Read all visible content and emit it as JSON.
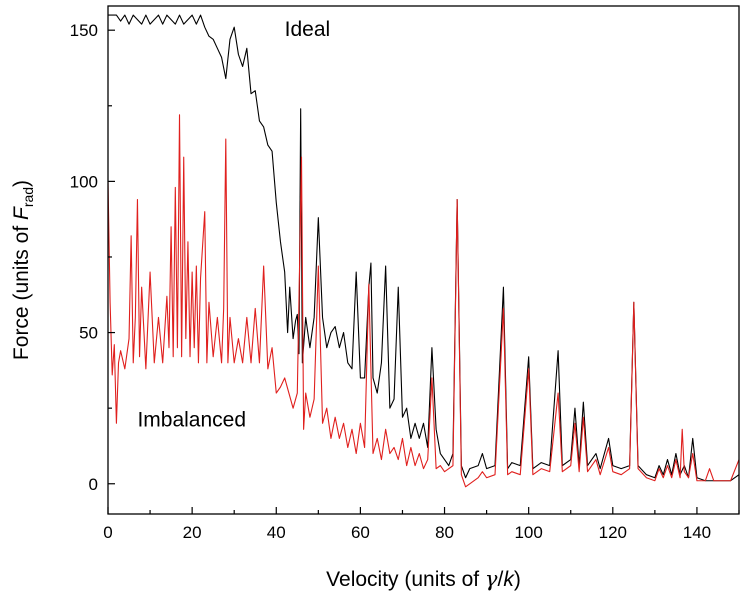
{
  "chart_data": {
    "type": "line",
    "title": "",
    "xlabel": "Velocity (units of γ/k)",
    "xlabel_parts": {
      "prefix": "Velocity (units of ",
      "gamma": "γ",
      "slash": "/",
      "k": "k",
      "suffix": ")"
    },
    "ylabel": "Force (units of F_rad)",
    "ylabel_parts": {
      "prefix": "Force (units of ",
      "F": "F",
      "sub": "rad",
      "suffix": ")"
    },
    "xlim": [
      0,
      150
    ],
    "ylim": [
      -10,
      158
    ],
    "xticks": [
      0,
      20,
      40,
      60,
      80,
      100,
      120,
      140
    ],
    "yticks": [
      0,
      50,
      100,
      150
    ],
    "grid": false,
    "annotations": [
      {
        "text": "Ideal",
        "x": 42,
        "y": 148
      },
      {
        "text": "Imbalanced",
        "x": 7,
        "y": 19
      }
    ],
    "series": [
      {
        "name": "Ideal",
        "color": "#000000",
        "points": [
          [
            0,
            155
          ],
          [
            2,
            155
          ],
          [
            3,
            153
          ],
          [
            4,
            155
          ],
          [
            5,
            152
          ],
          [
            6,
            155
          ],
          [
            8,
            152
          ],
          [
            9,
            155
          ],
          [
            10,
            152
          ],
          [
            12,
            155
          ],
          [
            13,
            152
          ],
          [
            14,
            155
          ],
          [
            16,
            152
          ],
          [
            17,
            155
          ],
          [
            18,
            152
          ],
          [
            20,
            155
          ],
          [
            21,
            152
          ],
          [
            22,
            155
          ],
          [
            23,
            151
          ],
          [
            24,
            148
          ],
          [
            25,
            147
          ],
          [
            26,
            144
          ],
          [
            27,
            141
          ],
          [
            28,
            134
          ],
          [
            29,
            147
          ],
          [
            30,
            151
          ],
          [
            31,
            142
          ],
          [
            32,
            138
          ],
          [
            33,
            144
          ],
          [
            34,
            129
          ],
          [
            35,
            130
          ],
          [
            36,
            120
          ],
          [
            37,
            118
          ],
          [
            38,
            112
          ],
          [
            39,
            110
          ],
          [
            40,
            93
          ],
          [
            41,
            80
          ],
          [
            42,
            70
          ],
          [
            42.7,
            50
          ],
          [
            43.2,
            65
          ],
          [
            44,
            48
          ],
          [
            44.6,
            54
          ],
          [
            45,
            56
          ],
          [
            45.4,
            43
          ],
          [
            45.8,
            124
          ],
          [
            46.2,
            40
          ],
          [
            47,
            55
          ],
          [
            48,
            45
          ],
          [
            49,
            55
          ],
          [
            50,
            88
          ],
          [
            51,
            55
          ],
          [
            52,
            45
          ],
          [
            53,
            50
          ],
          [
            54,
            52
          ],
          [
            55,
            45
          ],
          [
            56,
            50
          ],
          [
            57,
            40
          ],
          [
            58,
            38
          ],
          [
            59,
            70
          ],
          [
            60,
            35
          ],
          [
            61,
            35
          ],
          [
            62,
            65
          ],
          [
            62.5,
            73
          ],
          [
            63,
            35
          ],
          [
            64,
            30
          ],
          [
            65,
            40
          ],
          [
            66,
            72
          ],
          [
            67,
            25
          ],
          [
            68,
            28
          ],
          [
            69,
            65
          ],
          [
            70,
            22
          ],
          [
            71,
            25
          ],
          [
            72,
            15
          ],
          [
            73,
            20
          ],
          [
            74,
            15
          ],
          [
            75,
            20
          ],
          [
            76,
            12
          ],
          [
            77,
            45
          ],
          [
            78,
            18
          ],
          [
            79,
            10
          ],
          [
            80,
            8
          ],
          [
            81,
            6
          ],
          [
            82,
            10
          ],
          [
            83,
            94
          ],
          [
            84,
            6
          ],
          [
            85,
            2
          ],
          [
            86,
            5
          ],
          [
            88,
            6
          ],
          [
            89,
            10
          ],
          [
            90,
            5
          ],
          [
            92,
            6
          ],
          [
            94,
            65
          ],
          [
            95,
            5
          ],
          [
            96,
            7
          ],
          [
            98,
            6
          ],
          [
            100,
            42
          ],
          [
            101,
            5
          ],
          [
            103,
            7
          ],
          [
            105,
            6
          ],
          [
            107,
            44
          ],
          [
            108,
            6
          ],
          [
            110,
            8
          ],
          [
            111,
            25
          ],
          [
            112,
            6
          ],
          [
            113,
            27
          ],
          [
            114,
            6
          ],
          [
            116,
            10
          ],
          [
            117,
            5
          ],
          [
            119,
            15
          ],
          [
            120,
            6
          ],
          [
            122,
            5
          ],
          [
            124,
            6
          ],
          [
            125,
            60
          ],
          [
            126,
            6
          ],
          [
            128,
            3
          ],
          [
            130,
            2
          ],
          [
            131,
            6
          ],
          [
            132,
            3
          ],
          [
            133,
            8
          ],
          [
            134,
            3
          ],
          [
            135,
            10
          ],
          [
            136,
            3
          ],
          [
            137,
            6
          ],
          [
            138,
            2
          ],
          [
            139,
            15
          ],
          [
            140,
            2
          ],
          [
            142,
            1
          ],
          [
            144,
            1
          ],
          [
            146,
            1
          ],
          [
            148,
            1
          ],
          [
            150,
            3
          ]
        ]
      },
      {
        "name": "Imbalanced",
        "color": "#e0201e",
        "points": [
          [
            0,
            100
          ],
          [
            0.5,
            60
          ],
          [
            1,
            36
          ],
          [
            1.5,
            46
          ],
          [
            2,
            20
          ],
          [
            2.5,
            40
          ],
          [
            3,
            44
          ],
          [
            4,
            38
          ],
          [
            5,
            48
          ],
          [
            5.5,
            82
          ],
          [
            6,
            40
          ],
          [
            6.5,
            55
          ],
          [
            7,
            94
          ],
          [
            7.5,
            42
          ],
          [
            8,
            65
          ],
          [
            9,
            38
          ],
          [
            10,
            70
          ],
          [
            11,
            40
          ],
          [
            12,
            55
          ],
          [
            13,
            40
          ],
          [
            14,
            62
          ],
          [
            14.5,
            45
          ],
          [
            15,
            85
          ],
          [
            15.5,
            42
          ],
          [
            16,
            98
          ],
          [
            16.5,
            45
          ],
          [
            17,
            122
          ],
          [
            17.5,
            42
          ],
          [
            18,
            108
          ],
          [
            18.5,
            48
          ],
          [
            19,
            80
          ],
          [
            19.5,
            42
          ],
          [
            20,
            70
          ],
          [
            20.5,
            45
          ],
          [
            21,
            72
          ],
          [
            21.5,
            40
          ],
          [
            22,
            68
          ],
          [
            23,
            90
          ],
          [
            23.5,
            40
          ],
          [
            24,
            60
          ],
          [
            25,
            42
          ],
          [
            26,
            55
          ],
          [
            27,
            40
          ],
          [
            27.5,
            58
          ],
          [
            28,
            114
          ],
          [
            28.5,
            40
          ],
          [
            29,
            55
          ],
          [
            30,
            40
          ],
          [
            31,
            48
          ],
          [
            32,
            40
          ],
          [
            33,
            55
          ],
          [
            34,
            40
          ],
          [
            35,
            58
          ],
          [
            36,
            40
          ],
          [
            37,
            72
          ],
          [
            38,
            38
          ],
          [
            39,
            45
          ],
          [
            40,
            30
          ],
          [
            41,
            32
          ],
          [
            42,
            35
          ],
          [
            43,
            30
          ],
          [
            44,
            25
          ],
          [
            45,
            30
          ],
          [
            46,
            108
          ],
          [
            46.5,
            18
          ],
          [
            47,
            30
          ],
          [
            48,
            22
          ],
          [
            49,
            28
          ],
          [
            50,
            72
          ],
          [
            51,
            20
          ],
          [
            52,
            25
          ],
          [
            53,
            15
          ],
          [
            54,
            22
          ],
          [
            55,
            15
          ],
          [
            56,
            20
          ],
          [
            57,
            12
          ],
          [
            58,
            18
          ],
          [
            59,
            10
          ],
          [
            60,
            20
          ],
          [
            61,
            12
          ],
          [
            62,
            66
          ],
          [
            63,
            10
          ],
          [
            64,
            15
          ],
          [
            65,
            8
          ],
          [
            66,
            18
          ],
          [
            67,
            10
          ],
          [
            68,
            12
          ],
          [
            69,
            8
          ],
          [
            70,
            15
          ],
          [
            71,
            6
          ],
          [
            72,
            12
          ],
          [
            73,
            6
          ],
          [
            74,
            10
          ],
          [
            75,
            5
          ],
          [
            76,
            8
          ],
          [
            77,
            35
          ],
          [
            78,
            5
          ],
          [
            79,
            6
          ],
          [
            80,
            4
          ],
          [
            81,
            5
          ],
          [
            82,
            6
          ],
          [
            83,
            94
          ],
          [
            84,
            3
          ],
          [
            85,
            -1
          ],
          [
            86,
            0
          ],
          [
            88,
            2
          ],
          [
            89,
            4
          ],
          [
            90,
            2
          ],
          [
            92,
            3
          ],
          [
            94,
            58
          ],
          [
            95,
            3
          ],
          [
            96,
            4
          ],
          [
            98,
            3
          ],
          [
            100,
            38
          ],
          [
            101,
            3
          ],
          [
            103,
            5
          ],
          [
            105,
            4
          ],
          [
            107,
            30
          ],
          [
            108,
            4
          ],
          [
            110,
            6
          ],
          [
            111,
            20
          ],
          [
            112,
            4
          ],
          [
            113,
            22
          ],
          [
            114,
            4
          ],
          [
            116,
            8
          ],
          [
            117,
            3
          ],
          [
            119,
            12
          ],
          [
            120,
            4
          ],
          [
            122,
            3
          ],
          [
            124,
            5
          ],
          [
            125,
            60
          ],
          [
            126,
            5
          ],
          [
            128,
            2
          ],
          [
            130,
            1
          ],
          [
            131,
            5
          ],
          [
            132,
            2
          ],
          [
            133,
            6
          ],
          [
            134,
            2
          ],
          [
            135,
            8
          ],
          [
            136,
            2
          ],
          [
            136.5,
            18
          ],
          [
            137,
            4
          ],
          [
            138,
            2
          ],
          [
            139,
            10
          ],
          [
            140,
            1
          ],
          [
            142,
            1
          ],
          [
            143,
            5
          ],
          [
            144,
            1
          ],
          [
            146,
            1
          ],
          [
            148,
            1
          ],
          [
            150,
            8
          ]
        ]
      }
    ]
  }
}
